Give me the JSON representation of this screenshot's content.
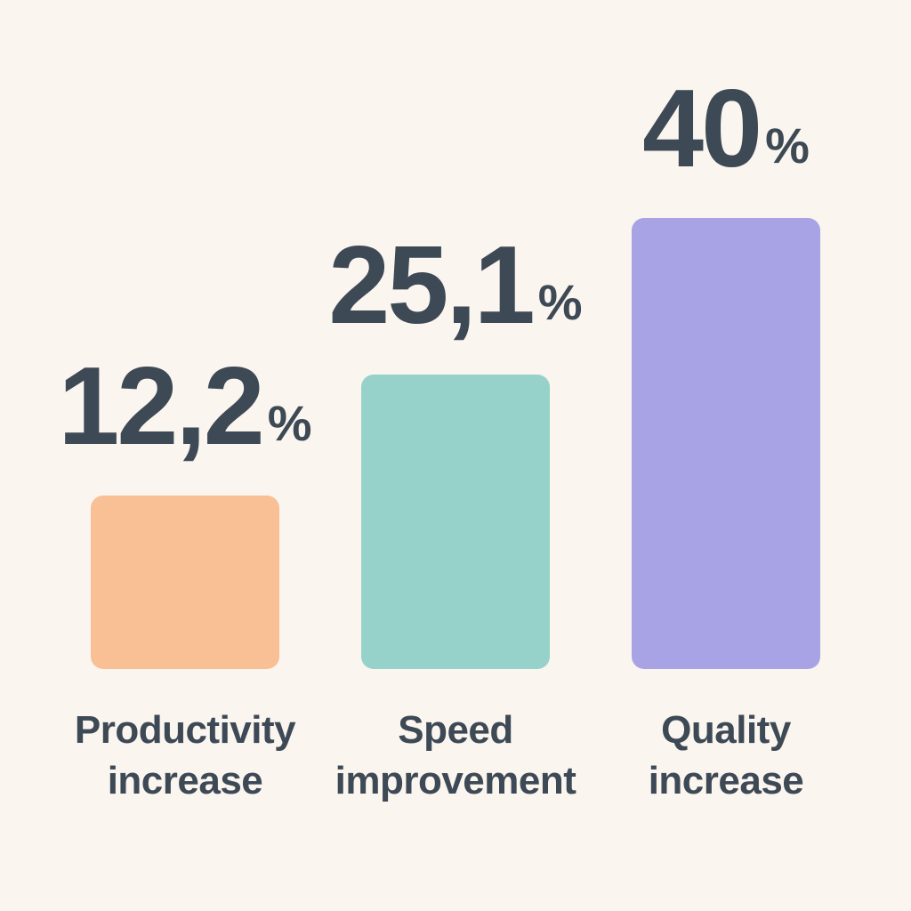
{
  "background": "#faf5ee",
  "text_color": "#3e4956",
  "chart_data": {
    "type": "bar",
    "title": "",
    "xlabel": "",
    "ylabel": "",
    "categories": [
      "Productivity increase",
      "Speed improvement",
      "Quality increase"
    ],
    "values": [
      12.2,
      25.1,
      40
    ],
    "unit": "%",
    "value_label_style": "decimal comma, percent sign smaller and raised",
    "colors": [
      "#f9c095",
      "#97d2ca",
      "#a7a3e5"
    ],
    "legend": false,
    "axes_visible": false,
    "grid": false,
    "bars": [
      {
        "value_text": "12,2",
        "unit": "%",
        "label_line1": "Productivity",
        "label_line2": "increase",
        "color": "#f9c095",
        "bar_style": "height:195px;background:#f9c095"
      },
      {
        "value_text": "25,1",
        "unit": "%",
        "label_line1": "Speed",
        "label_line2": "improvement",
        "color": "#97d2ca",
        "bar_style": "height:331px;background:#97d2ca"
      },
      {
        "value_text": "40",
        "unit": "%",
        "label_line1": "Quality",
        "label_line2": "increase",
        "color": "#a7a3e5",
        "bar_style": "height:507px;background:#a7a3e5"
      }
    ]
  }
}
